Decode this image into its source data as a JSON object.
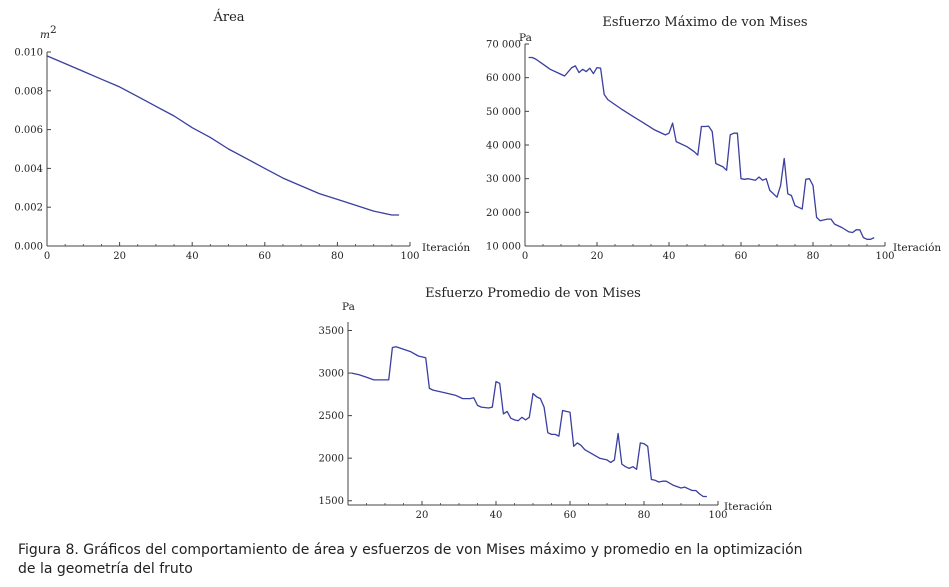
{
  "caption": {
    "line1": "Figura 8. Gráficos del comportamiento de área y esfuerzos de von Mises máximo y promedio en la optimización",
    "line2": "de la geometría del fruto"
  },
  "chart_data": [
    {
      "type": "line",
      "title": "Área",
      "xlabel": "Iteración",
      "ylabel": "m",
      "ylabel_sup": "2",
      "xlim": [
        0,
        100
      ],
      "ylim": [
        0,
        0.01
      ],
      "xticks": [
        0,
        20,
        40,
        60,
        80,
        100
      ],
      "xtick_labels": [
        "0",
        "20",
        "40",
        "60",
        "80",
        "100"
      ],
      "yticks": [
        0,
        0.002,
        0.004,
        0.006,
        0.008,
        0.01
      ],
      "ytick_labels": [
        "0.000",
        "0.002",
        "0.004",
        "0.006",
        "0.008",
        "0.010"
      ],
      "grid": false,
      "color": "#3a3fa0",
      "series": [
        {
          "x": [
            0,
            5,
            10,
            15,
            20,
            25,
            30,
            35,
            40,
            45,
            50,
            55,
            60,
            65,
            70,
            75,
            80,
            85,
            90,
            95,
            97
          ],
          "y": [
            0.0098,
            0.0094,
            0.009,
            0.0086,
            0.0082,
            0.0077,
            0.0072,
            0.0067,
            0.0061,
            0.0056,
            0.005,
            0.0045,
            0.004,
            0.0035,
            0.0031,
            0.0027,
            0.0024,
            0.0021,
            0.0018,
            0.0016,
            0.0016
          ]
        }
      ]
    },
    {
      "type": "line",
      "title": "Esfuerzo Máximo de von Mises",
      "xlabel": "Iteración",
      "ylabel": "Pa",
      "xlim": [
        0,
        100
      ],
      "ylim": [
        10000,
        70000
      ],
      "xticks": [
        0,
        20,
        40,
        60,
        80,
        100
      ],
      "xtick_labels": [
        "0",
        "20",
        "40",
        "60",
        "80",
        "100"
      ],
      "yticks": [
        10000,
        20000,
        30000,
        40000,
        50000,
        60000,
        70000
      ],
      "ytick_labels": [
        "10 000",
        "20 000",
        "30 000",
        "40 000",
        "50 000",
        "60 000",
        "70 000"
      ],
      "grid": false,
      "color": "#3a3fa0",
      "series": [
        {
          "x": [
            1,
            2,
            3,
            5,
            7,
            9,
            11,
            13,
            14,
            15,
            16,
            17,
            18,
            19,
            20,
            21,
            22,
            23,
            25,
            27,
            30,
            33,
            36,
            39,
            40,
            41,
            42,
            45,
            47,
            48,
            49,
            50,
            51,
            52,
            53,
            55,
            56,
            57,
            58,
            59,
            60,
            61,
            62,
            64,
            65,
            66,
            67,
            68,
            70,
            71,
            72,
            73,
            74,
            75,
            76,
            77,
            78,
            79,
            80,
            81,
            82,
            84,
            85,
            86,
            88,
            90,
            91,
            92,
            93,
            94,
            95,
            96,
            97
          ],
          "y": [
            66000,
            66000,
            65500,
            64000,
            62500,
            61500,
            60500,
            63000,
            63500,
            61500,
            62500,
            61800,
            62800,
            61200,
            63000,
            62800,
            55000,
            53500,
            52000,
            50500,
            48500,
            46500,
            44500,
            43000,
            43500,
            46500,
            41000,
            39500,
            38000,
            37000,
            45500,
            45500,
            45600,
            44000,
            34500,
            33500,
            32500,
            43000,
            43500,
            43500,
            30000,
            29800,
            30000,
            29500,
            30500,
            29500,
            30000,
            26500,
            24500,
            28000,
            36000,
            25500,
            25000,
            22000,
            21500,
            21000,
            29800,
            30000,
            28000,
            18500,
            17500,
            18000,
            18000,
            16500,
            15500,
            14200,
            14000,
            14800,
            14800,
            12500,
            12000,
            12000,
            12500
          ]
        }
      ]
    },
    {
      "type": "line",
      "title": "Esfuerzo Promedio de von Mises",
      "xlabel": "Iteración",
      "ylabel": "Pa",
      "xlim": [
        0,
        100
      ],
      "ylim": [
        1450,
        3600
      ],
      "xticks": [
        20,
        40,
        60,
        80,
        100
      ],
      "xtick_labels": [
        "20",
        "40",
        "60",
        "80",
        "100"
      ],
      "yticks": [
        1500,
        2000,
        2500,
        3000,
        3500
      ],
      "ytick_labels": [
        "1500",
        "2000",
        "2500",
        "3000",
        "3500"
      ],
      "grid": false,
      "color": "#3a3fa0",
      "series": [
        {
          "x": [
            1,
            3,
            5,
            7,
            10,
            11,
            12,
            13,
            15,
            17,
            19,
            21,
            22,
            23,
            26,
            29,
            31,
            33,
            34,
            35,
            36,
            38,
            39,
            40,
            41,
            42,
            43,
            44,
            45,
            46,
            47,
            48,
            49,
            50,
            51,
            52,
            53,
            54,
            55,
            56,
            57,
            58,
            59,
            60,
            61,
            62,
            63,
            64,
            66,
            68,
            70,
            71,
            72,
            73,
            74,
            75,
            76,
            77,
            78,
            79,
            80,
            81,
            82,
            83,
            84,
            85,
            86,
            88,
            90,
            91,
            92,
            93,
            94,
            95,
            96,
            97
          ],
          "y": [
            3000,
            2980,
            2950,
            2920,
            2920,
            2920,
            3300,
            3310,
            3280,
            3250,
            3200,
            3180,
            2820,
            2800,
            2770,
            2740,
            2700,
            2700,
            2710,
            2620,
            2600,
            2590,
            2600,
            2900,
            2880,
            2520,
            2550,
            2470,
            2450,
            2440,
            2480,
            2450,
            2480,
            2760,
            2720,
            2700,
            2600,
            2300,
            2280,
            2280,
            2260,
            2560,
            2550,
            2540,
            2140,
            2180,
            2150,
            2100,
            2050,
            2000,
            1980,
            1950,
            1980,
            2290,
            1930,
            1900,
            1880,
            1900,
            1870,
            2180,
            2170,
            2140,
            1750,
            1740,
            1720,
            1730,
            1730,
            1680,
            1650,
            1660,
            1640,
            1620,
            1620,
            1580,
            1550,
            1550
          ]
        }
      ]
    }
  ]
}
